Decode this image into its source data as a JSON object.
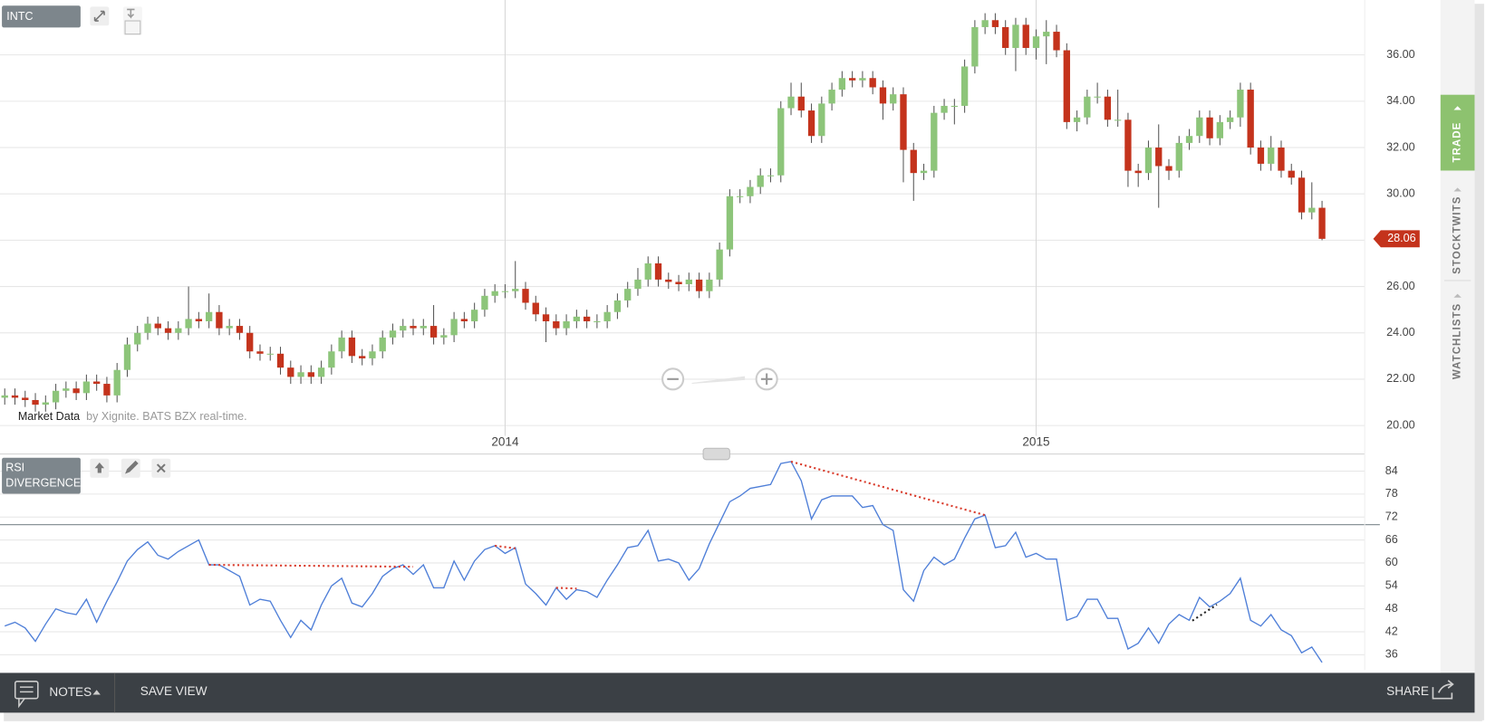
{
  "ui": {
    "symbol": "INTC",
    "indicator": [
      "RSI",
      "DIVERGENCE"
    ],
    "attribution": {
      "source": "Market Data",
      "note": "by Xignite. BATS BZX real-time."
    },
    "sidebar_tabs": [
      "TRADE",
      "STOCKTWITS",
      "WATCHLISTS"
    ],
    "footer": {
      "notes": "NOTES",
      "save_view": "SAVE VIEW",
      "share": "SHARE"
    }
  },
  "chart_data": [
    {
      "type": "candlestick",
      "categories": [
        null,
        null,
        null,
        null,
        null,
        null,
        null,
        null,
        null,
        null,
        null,
        null,
        null,
        null,
        null,
        null,
        null,
        null,
        null,
        null,
        null,
        null,
        null,
        null,
        null,
        null,
        null,
        null,
        null,
        null,
        null,
        null,
        null,
        null,
        null,
        null,
        null,
        null,
        null,
        null,
        null,
        null,
        null,
        null,
        null,
        null,
        null,
        null,
        null,
        "2014",
        null,
        null,
        null,
        null,
        null,
        null,
        null,
        null,
        null,
        null,
        null,
        null,
        null,
        null,
        null,
        null,
        null,
        null,
        null,
        null,
        null,
        null,
        null,
        null,
        null,
        null,
        null,
        null,
        null,
        null,
        null,
        null,
        null,
        null,
        null,
        null,
        null,
        null,
        null,
        null,
        null,
        null,
        null,
        null,
        null,
        null,
        null,
        null,
        null,
        null,
        null,
        "2015",
        null,
        null,
        null,
        null,
        null,
        null,
        null,
        null,
        null,
        null,
        null,
        null,
        null,
        null,
        null,
        null,
        null,
        null,
        null,
        null,
        null,
        null,
        null,
        null,
        null,
        null,
        null,
        null
      ],
      "open": [
        21.2,
        21.3,
        21.2,
        21.1,
        20.9,
        21.0,
        21.5,
        21.6,
        21.4,
        21.9,
        21.8,
        21.3,
        22.4,
        23.5,
        24.0,
        24.4,
        24.2,
        24.0,
        24.2,
        24.6,
        24.5,
        24.9,
        24.2,
        24.3,
        24.0,
        23.2,
        23.1,
        23.1,
        22.5,
        22.1,
        22.3,
        22.1,
        22.5,
        23.2,
        23.8,
        23.0,
        22.9,
        23.2,
        23.8,
        24.1,
        24.3,
        24.2,
        24.3,
        23.8,
        23.9,
        24.6,
        24.5,
        25.0,
        25.6,
        25.8,
        25.8,
        25.9,
        25.3,
        24.8,
        24.5,
        24.2,
        24.5,
        24.7,
        24.5,
        24.5,
        24.9,
        25.4,
        25.9,
        26.3,
        27.0,
        26.3,
        26.2,
        26.1,
        26.3,
        25.8,
        26.3,
        27.6,
        29.9,
        29.9,
        30.3,
        30.8,
        30.8,
        33.7,
        34.2,
        33.6,
        32.5,
        33.9,
        34.5,
        35.0,
        34.9,
        35.0,
        34.6,
        33.9,
        34.3,
        31.9,
        30.9,
        31.0,
        33.5,
        33.8,
        33.8,
        35.5,
        37.2,
        37.5,
        37.2,
        36.3,
        37.3,
        36.3,
        36.8,
        37.0,
        36.2,
        33.1,
        33.3,
        34.2,
        34.2,
        33.2,
        33.2,
        31.0,
        30.9,
        32.0,
        31.2,
        31.0,
        32.2,
        32.5,
        33.3,
        32.4,
        33.1,
        33.3,
        34.5,
        32.0,
        31.3,
        32.0,
        31.0,
        30.7,
        29.2,
        29.4
      ],
      "high": [
        21.6,
        21.6,
        21.5,
        21.4,
        21.3,
        21.8,
        21.9,
        21.9,
        22.2,
        22.2,
        22.1,
        22.7,
        23.8,
        24.3,
        24.7,
        24.7,
        24.5,
        24.5,
        26.0,
        24.9,
        25.7,
        25.2,
        24.6,
        24.6,
        24.3,
        23.5,
        23.4,
        23.4,
        22.8,
        22.6,
        22.6,
        22.8,
        23.5,
        24.1,
        24.1,
        23.3,
        23.5,
        24.1,
        24.4,
        24.6,
        24.6,
        24.6,
        25.2,
        24.2,
        24.9,
        24.9,
        25.3,
        25.9,
        26.1,
        26.1,
        27.1,
        26.2,
        25.6,
        25.1,
        24.8,
        24.8,
        25.0,
        25.0,
        24.8,
        25.2,
        25.7,
        26.2,
        26.8,
        27.3,
        27.3,
        26.6,
        26.5,
        26.6,
        26.6,
        26.6,
        27.9,
        30.2,
        30.2,
        30.6,
        31.1,
        31.1,
        34.0,
        34.8,
        34.8,
        33.9,
        34.2,
        34.8,
        35.3,
        35.3,
        35.3,
        35.3,
        34.9,
        34.6,
        34.6,
        32.2,
        31.3,
        33.8,
        34.1,
        34.1,
        35.8,
        37.5,
        37.8,
        37.8,
        37.5,
        37.6,
        37.6,
        37.1,
        37.5,
        37.3,
        36.5,
        33.6,
        34.5,
        34.8,
        34.5,
        34.5,
        33.5,
        31.3,
        32.3,
        33.0,
        31.5,
        32.5,
        32.8,
        33.6,
        33.6,
        33.4,
        33.6,
        34.8,
        34.8,
        32.3,
        32.5,
        32.3,
        31.3,
        31.0,
        30.5,
        29.7
      ],
      "low": [
        20.9,
        20.9,
        20.8,
        20.6,
        20.6,
        20.7,
        21.2,
        21.1,
        21.1,
        21.5,
        21.0,
        21.0,
        22.1,
        23.2,
        23.7,
        23.9,
        23.7,
        23.7,
        23.9,
        24.2,
        24.2,
        23.9,
        23.9,
        23.7,
        22.9,
        22.8,
        22.8,
        22.2,
        21.8,
        21.8,
        21.8,
        21.8,
        22.2,
        22.9,
        22.7,
        22.6,
        22.6,
        22.9,
        23.5,
        23.8,
        23.9,
        23.9,
        23.5,
        23.5,
        23.6,
        24.2,
        24.2,
        24.7,
        25.3,
        25.5,
        25.5,
        25.0,
        24.5,
        23.6,
        23.9,
        23.9,
        24.2,
        24.2,
        24.2,
        24.2,
        24.6,
        25.1,
        25.6,
        26.0,
        26.0,
        25.9,
        25.8,
        25.8,
        25.5,
        25.5,
        26.0,
        27.3,
        29.6,
        29.6,
        30.0,
        30.5,
        30.5,
        33.4,
        33.3,
        32.2,
        32.2,
        33.6,
        34.2,
        34.6,
        34.6,
        34.3,
        33.2,
        33.6,
        30.5,
        29.7,
        30.6,
        30.7,
        33.2,
        33.0,
        33.5,
        35.2,
        36.9,
        36.9,
        36.0,
        35.3,
        36.0,
        35.8,
        35.6,
        35.9,
        32.8,
        32.7,
        33.0,
        33.9,
        32.9,
        32.9,
        30.3,
        30.3,
        30.6,
        29.4,
        30.6,
        30.7,
        31.9,
        32.2,
        32.1,
        32.1,
        32.8,
        32.9,
        31.7,
        31.0,
        31.0,
        30.7,
        30.4,
        28.9,
        28.9,
        28.0
      ],
      "close": [
        21.3,
        21.2,
        21.1,
        20.9,
        21.0,
        21.5,
        21.6,
        21.4,
        21.9,
        21.8,
        21.3,
        22.4,
        23.5,
        24.0,
        24.4,
        24.2,
        24.0,
        24.2,
        24.6,
        24.5,
        24.9,
        24.2,
        24.3,
        24.0,
        23.2,
        23.1,
        23.1,
        22.5,
        22.1,
        22.3,
        22.1,
        22.5,
        23.2,
        23.8,
        23.0,
        22.9,
        23.2,
        23.8,
        24.1,
        24.3,
        24.2,
        24.3,
        23.8,
        23.9,
        24.6,
        24.5,
        25.0,
        25.6,
        25.8,
        25.8,
        25.9,
        25.3,
        24.8,
        24.5,
        24.2,
        24.5,
        24.7,
        24.5,
        24.5,
        24.9,
        25.4,
        25.9,
        26.3,
        27.0,
        26.3,
        26.2,
        26.1,
        26.3,
        25.8,
        26.3,
        27.6,
        29.9,
        29.9,
        30.3,
        30.8,
        30.8,
        33.7,
        34.2,
        33.6,
        32.5,
        33.9,
        34.5,
        35.0,
        34.9,
        35.0,
        34.6,
        33.9,
        34.3,
        31.9,
        30.9,
        31.0,
        33.5,
        33.8,
        33.8,
        35.5,
        37.2,
        37.5,
        37.2,
        36.3,
        37.3,
        36.3,
        36.8,
        37.0,
        36.2,
        33.1,
        33.3,
        34.2,
        34.2,
        33.2,
        33.2,
        31.0,
        30.9,
        32.0,
        31.2,
        31.0,
        32.2,
        32.5,
        33.3,
        32.4,
        33.1,
        33.3,
        34.5,
        32.0,
        31.3,
        32.0,
        31.0,
        30.7,
        29.2,
        29.4,
        28.06
      ],
      "ylim": [
        19.55,
        38.37
      ],
      "yticks": [
        {
          "value": 20,
          "label": "20.00"
        },
        {
          "value": 22,
          "label": "22.00"
        },
        {
          "value": 24,
          "label": "24.00"
        },
        {
          "value": 26,
          "label": "26.00"
        },
        {
          "value": 28,
          "label": "28.00"
        },
        {
          "value": 30,
          "label": "30.00"
        },
        {
          "value": 32,
          "label": "32.00"
        },
        {
          "value": 34,
          "label": "34.00"
        },
        {
          "value": 36,
          "label": "36.00"
        }
      ],
      "up_color": "#8dc57a",
      "down_color": "#c4331c",
      "last_price": 28.06,
      "grid": true
    },
    {
      "type": "line",
      "values": [
        43.5,
        44.5,
        43,
        39.5,
        44,
        48,
        47,
        46.5,
        50.5,
        44.5,
        50,
        55,
        60.5,
        63.5,
        65.5,
        62,
        61,
        63,
        64.5,
        66,
        59.5,
        59.5,
        58,
        56.5,
        49,
        50.5,
        50,
        45,
        40.5,
        45,
        42.5,
        49,
        54,
        56,
        49.5,
        48.5,
        52,
        56.5,
        58.5,
        59.5,
        57,
        59.5,
        53.5,
        53.5,
        60.5,
        55.5,
        60.5,
        63.5,
        64.5,
        62.5,
        64,
        54.5,
        52,
        49,
        53.5,
        50.5,
        53,
        52.5,
        51,
        55.5,
        59.5,
        64,
        64.5,
        68.5,
        60.5,
        61,
        60,
        55.5,
        58.5,
        65,
        70.5,
        76,
        77.5,
        79.5,
        80,
        80.5,
        86,
        86.5,
        81.5,
        71.5,
        76.5,
        77.5,
        77.5,
        77.5,
        74.5,
        75,
        70,
        68.5,
        53,
        50,
        58,
        61.5,
        59.5,
        61,
        66.5,
        71.5,
        72.5,
        64,
        64.5,
        68,
        61.5,
        62.5,
        61,
        61,
        45,
        46,
        50.5,
        50.5,
        45.5,
        45.5,
        37.5,
        39,
        43,
        39,
        44,
        46.5,
        45,
        51,
        48.5,
        50,
        52,
        56,
        45,
        43.5,
        46.5,
        42.5,
        41,
        36.5,
        38,
        34
      ],
      "color": "#4f7fd8",
      "ylim": [
        32,
        87.5
      ],
      "yticks": [
        36,
        42,
        48,
        54,
        60,
        66,
        72,
        78,
        84
      ],
      "reference_line": 70,
      "reference_color": "#8a9499",
      "grid": true,
      "divergences": [
        {
          "start": [
            20,
            59.5
          ],
          "end": [
            40,
            59.0
          ],
          "color": "#d93b2b"
        },
        {
          "start": [
            48,
            64.5
          ],
          "end": [
            50,
            63.8
          ],
          "color": "#d93b2b"
        },
        {
          "start": [
            54,
            53.5
          ],
          "end": [
            56,
            53.3
          ],
          "color": "#d93b2b"
        },
        {
          "start": [
            77,
            86.5
          ],
          "end": [
            96,
            72.5
          ],
          "color": "#d93b2b"
        },
        {
          "start": [
            116.3,
            44.9
          ],
          "end": [
            118.7,
            49.1
          ],
          "color": "#222222"
        }
      ]
    }
  ]
}
